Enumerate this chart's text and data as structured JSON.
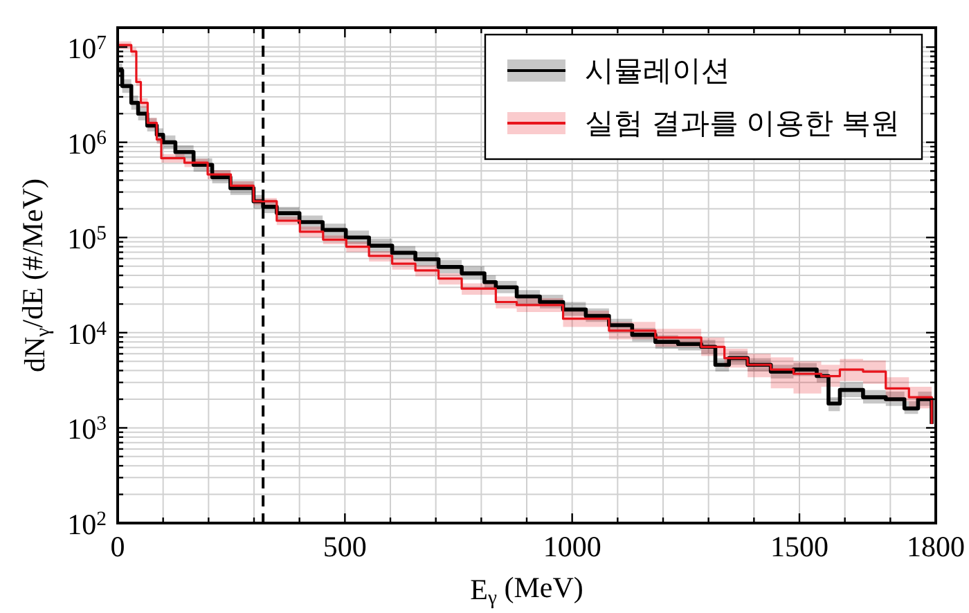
{
  "chart_data": {
    "type": "step",
    "xlabel": "E$_{γ}$ (MeV)",
    "ylabel": "dN$_{γ}$/dE (#/MeV)",
    "log": "y",
    "grid": true,
    "legend": "top right",
    "xlim": [
      0,
      1800
    ],
    "ylim": [
      100,
      16000000
    ],
    "xticks": [
      0,
      {
        "value": 100,
        "label": null
      },
      {
        "value": 200,
        "label": null
      },
      {
        "value": 300,
        "label": null
      },
      {
        "value": 400,
        "label": null
      },
      500,
      {
        "value": 600,
        "label": null
      },
      {
        "value": 700,
        "label": null
      },
      {
        "value": 800,
        "label": null
      },
      {
        "value": 900,
        "label": null
      },
      1000,
      {
        "value": 1100,
        "label": null
      },
      {
        "value": 1200,
        "label": null
      },
      {
        "value": 1300,
        "label": null
      },
      {
        "value": 1400,
        "label": null
      },
      1500,
      {
        "value": 1600,
        "label": null
      },
      {
        "value": 1700,
        "label": null
      },
      1800
    ],
    "yticks": [
      {
        "value": 100,
        "label": "10$^{2}$"
      },
      {
        "value": 200,
        "label": null
      },
      {
        "value": 300,
        "label": null
      },
      {
        "value": 400,
        "label": null
      },
      {
        "value": 500,
        "label": null
      },
      {
        "value": 600,
        "label": null
      },
      {
        "value": 700,
        "label": null
      },
      {
        "value": 800,
        "label": null
      },
      {
        "value": 900,
        "label": null
      },
      {
        "value": 1000,
        "label": "10$^{3}$"
      },
      {
        "value": 2000,
        "label": null
      },
      {
        "value": 3000,
        "label": null
      },
      {
        "value": 4000,
        "label": null
      },
      {
        "value": 5000,
        "label": null
      },
      {
        "value": 6000,
        "label": null
      },
      {
        "value": 7000,
        "label": null
      },
      {
        "value": 8000,
        "label": null
      },
      {
        "value": 9000,
        "label": null
      },
      {
        "value": 10000,
        "label": "10$^{4}$"
      },
      {
        "value": 20000,
        "label": null
      },
      {
        "value": 30000,
        "label": null
      },
      {
        "value": 40000,
        "label": null
      },
      {
        "value": 50000,
        "label": null
      },
      {
        "value": 60000,
        "label": null
      },
      {
        "value": 70000,
        "label": null
      },
      {
        "value": 80000,
        "label": null
      },
      {
        "value": 90000,
        "label": null
      },
      {
        "value": 100000,
        "label": "10$^{5}$"
      },
      {
        "value": 200000,
        "label": null
      },
      {
        "value": 300000,
        "label": null
      },
      {
        "value": 400000,
        "label": null
      },
      {
        "value": 500000,
        "label": null
      },
      {
        "value": 600000,
        "label": null
      },
      {
        "value": 700000,
        "label": null
      },
      {
        "value": 800000,
        "label": null
      },
      {
        "value": 900000,
        "label": null
      },
      {
        "value": 1000000,
        "label": "10$^{6}$"
      },
      {
        "value": 2000000,
        "label": null
      },
      {
        "value": 3000000,
        "label": null
      },
      {
        "value": 4000000,
        "label": null
      },
      {
        "value": 5000000,
        "label": null
      },
      {
        "value": 6000000,
        "label": null
      },
      {
        "value": 7000000,
        "label": null
      },
      {
        "value": 8000000,
        "label": null
      },
      {
        "value": 9000000,
        "label": null
      },
      {
        "value": 10000000,
        "label": "10$^{7}$"
      }
    ],
    "ref_lines": [
      {
        "axis": "x",
        "value": 320,
        "color": "#000000",
        "line_style": "dashed"
      }
    ],
    "series": [
      {
        "name": "시뮬레이션",
        "color": "#000000",
        "x": [
          0,
          10,
          30,
          45,
          65,
          86,
          100,
          127,
          167,
          208,
          248,
          299,
          320,
          350,
          400,
          451,
          502,
          553,
          604,
          655,
          706,
          757,
          807,
          832,
          878,
          929,
          980,
          1030,
          1081,
          1132,
          1183,
          1233,
          1284,
          1315,
          1345,
          1386,
          1437,
          1487,
          1538,
          1564,
          1589,
          1640,
          1690,
          1731,
          1761,
          1791
        ],
        "values": [
          5700000,
          3900000,
          2600000,
          2000000,
          1500000,
          1200000,
          1000000,
          790000,
          580000,
          430000,
          330000,
          240000,
          210000,
          180000,
          145000,
          120000,
          100000,
          82000,
          69000,
          59000,
          49000,
          42000,
          34000,
          30000,
          24000,
          21000,
          17500,
          15000,
          12000,
          9500,
          8000,
          7600,
          7100,
          4600,
          5400,
          4600,
          3900,
          4100,
          3500,
          1800,
          2500,
          2100,
          2000,
          1600,
          2000,
          1100
        ],
        "lower": [
          4800000,
          3300000,
          2200000,
          1700000,
          1300000,
          1000000,
          850000,
          670000,
          490000,
          370000,
          280000,
          200000,
          180000,
          150000,
          120000,
          100000,
          85000,
          70000,
          59000,
          50000,
          42000,
          36000,
          29000,
          26000,
          20000,
          18000,
          15000,
          13000,
          10000,
          8100,
          6800,
          6500,
          6000,
          3900,
          4600,
          3900,
          3300,
          3500,
          3000,
          1500,
          2100,
          1800,
          1700,
          1400,
          1700,
          940
        ],
        "upper": [
          6700000,
          4600000,
          3100000,
          2400000,
          1800000,
          1400000,
          1180000,
          930000,
          680000,
          510000,
          390000,
          280000,
          250000,
          210000,
          170000,
          140000,
          118000,
          97000,
          81000,
          70000,
          58000,
          50000,
          40000,
          35000,
          28000,
          25000,
          21000,
          18000,
          14000,
          11200,
          9400,
          9000,
          8400,
          5400,
          6400,
          5400,
          4600,
          4800,
          4100,
          2100,
          3000,
          2500,
          2400,
          1900,
          2400,
          1300
        ]
      },
      {
        "name": "실험 결과를 이용한 복원",
        "color": "#e8141c",
        "x": [
          0,
          30,
          41,
          51,
          66,
          86,
          96,
          117,
          147,
          198,
          249,
          299,
          350,
          401,
          452,
          503,
          553,
          604,
          655,
          706,
          757,
          832,
          878,
          980,
          1081,
          1183,
          1233,
          1284,
          1335,
          1386,
          1437,
          1487,
          1548,
          1589,
          1640,
          1690,
          1741,
          1791
        ],
        "values": [
          10500000,
          9000000,
          4300000,
          2600000,
          1600000,
          1070000,
          680000,
          680000,
          610000,
          460000,
          350000,
          240000,
          150000,
          115000,
          95000,
          80000,
          64000,
          53000,
          45000,
          37000,
          29000,
          21000,
          19500,
          14000,
          10500,
          8900,
          8900,
          7100,
          5400,
          4600,
          4100,
          3700,
          3500,
          4100,
          3900,
          2600,
          2100,
          1100
        ],
        "lower": [
          9500000,
          8100000,
          3900000,
          2300000,
          1400000,
          960000,
          610000,
          610000,
          550000,
          410000,
          320000,
          220000,
          135000,
          100000,
          85000,
          70000,
          56000,
          46000,
          39000,
          32000,
          25000,
          18000,
          16500,
          11500,
          8500,
          7100,
          7100,
          5700,
          4300,
          3400,
          2600,
          2300,
          2700,
          3100,
          2900,
          1900,
          1600,
          800
        ],
        "upper": [
          11500000,
          9900000,
          4700000,
          2900000,
          1800000,
          1180000,
          750000,
          750000,
          670000,
          510000,
          390000,
          260000,
          165000,
          130000,
          105000,
          90000,
          72000,
          60000,
          51000,
          42000,
          33000,
          24000,
          23000,
          17000,
          13000,
          11000,
          11000,
          8900,
          6800,
          6000,
          5500,
          5000,
          4600,
          5300,
          5100,
          3400,
          2700,
          1400
        ]
      }
    ]
  }
}
